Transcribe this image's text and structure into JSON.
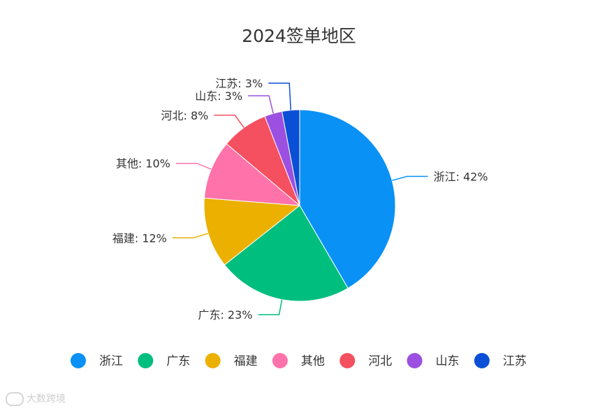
{
  "chart_data": {
    "type": "pie",
    "title": "2024签单地区",
    "slices": [
      {
        "name": "浙江",
        "label": "浙江: 42%",
        "value": 42,
        "color": "#0A91F5"
      },
      {
        "name": "广东",
        "label": "广东: 23%",
        "value": 23,
        "color": "#00BE7D"
      },
      {
        "name": "福建",
        "label": "福建: 12%",
        "value": 12,
        "color": "#EBB000"
      },
      {
        "name": "其他",
        "label": "其他: 10%",
        "value": 10,
        "color": "#FF73AA"
      },
      {
        "name": "河北",
        "label": "河北: 8%",
        "value": 8,
        "color": "#F55060"
      },
      {
        "name": "山东",
        "label": "山东: 3%",
        "value": 3,
        "color": "#9B50E1"
      },
      {
        "name": "江苏",
        "label": "江苏: 3%",
        "value": 3,
        "color": "#0A50D7"
      }
    ],
    "legend_position": "bottom"
  },
  "watermark": "大数跨境"
}
